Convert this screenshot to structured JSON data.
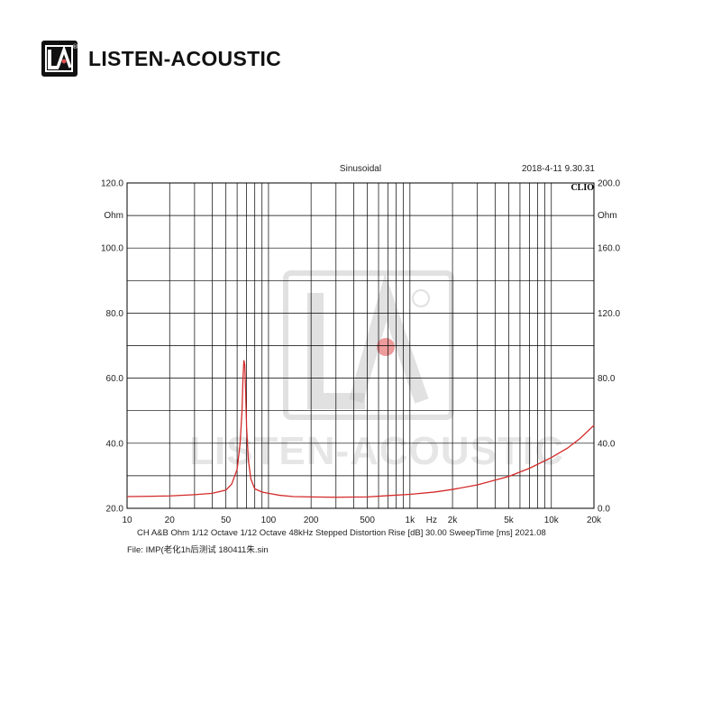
{
  "brand": {
    "name": "LISTEN-ACOUSTIC",
    "logo_letters": "LA",
    "registered_mark": "®"
  },
  "colors": {
    "curve": "#d42a2a",
    "grid": "#000000",
    "watermark": "#c8c8c8",
    "watermark_dot": "#e87a7a"
  },
  "chart_data": {
    "type": "line",
    "title": "Sinusoidal",
    "timestamp": "2018-4-11 9.30.31",
    "software_tag": "CLIO",
    "x_scale": "log",
    "xlim": [
      10,
      20000
    ],
    "x_ticks": [
      {
        "v": 10,
        "label": "10"
      },
      {
        "v": 20,
        "label": "20"
      },
      {
        "v": 50,
        "label": "50"
      },
      {
        "v": 100,
        "label": "100"
      },
      {
        "v": 200,
        "label": "200"
      },
      {
        "v": 500,
        "label": "500"
      },
      {
        "v": 1000,
        "label": "1k"
      },
      {
        "v": 2000,
        "label": "2k"
      },
      {
        "v": 5000,
        "label": "5k"
      },
      {
        "v": 10000,
        "label": "10k"
      },
      {
        "v": 20000,
        "label": "20k"
      }
    ],
    "x_unit": "Hz",
    "y_left": {
      "unit": "Ohm",
      "lim": [
        20,
        120
      ],
      "ticks": [
        {
          "v": 120,
          "label": "120.0"
        },
        {
          "v": 100,
          "label": "100.0"
        },
        {
          "v": 80,
          "label": "80.0"
        },
        {
          "v": 60,
          "label": "60.0"
        },
        {
          "v": 40,
          "label": "40.0"
        },
        {
          "v": 20,
          "label": "20.0"
        }
      ]
    },
    "y_right": {
      "unit": "Ohm",
      "lim": [
        0,
        200
      ],
      "ticks": [
        {
          "v": 200,
          "label": "200.0"
        },
        {
          "v": 160,
          "label": "160.0"
        },
        {
          "v": 120,
          "label": "120.0"
        },
        {
          "v": 80,
          "label": "80.0"
        },
        {
          "v": 40,
          "label": "40.0"
        },
        {
          "v": 0,
          "label": "0.0"
        }
      ]
    },
    "grid": true,
    "series": [
      {
        "axis": "left",
        "color": "#d42a2a",
        "x": [
          10,
          15,
          20,
          30,
          40,
          50,
          55,
          60,
          63,
          65,
          66,
          67,
          68,
          69,
          70,
          72,
          75,
          80,
          90,
          100,
          120,
          150,
          200,
          300,
          500,
          700,
          1000,
          1500,
          2000,
          3000,
          5000,
          7000,
          10000,
          13000,
          16000,
          20000
        ],
        "y": [
          23.6,
          23.7,
          23.8,
          24.2,
          24.6,
          25.6,
          27.5,
          32,
          40,
          50,
          60,
          65.5,
          64,
          55,
          45,
          35,
          29,
          26,
          25,
          24.6,
          24.0,
          23.6,
          23.5,
          23.4,
          23.5,
          23.9,
          24.3,
          25.0,
          25.8,
          27.2,
          29.8,
          32.3,
          35.6,
          38.5,
          41.5,
          45.5
        ]
      }
    ],
    "info_line": "CH A&B   Ohm    1/12 Octave    1/12 Octave   48kHz   Stepped    Distortion Rise [dB] 30.00    SweepTime [ms] 2021.08",
    "file_line": "File: IMP(老化1h后测试 180411朱.sin"
  }
}
